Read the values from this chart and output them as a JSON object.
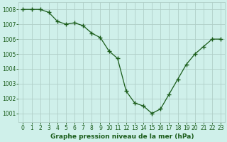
{
  "x": [
    0,
    1,
    2,
    3,
    4,
    5,
    6,
    7,
    8,
    9,
    10,
    11,
    12,
    13,
    14,
    15,
    16,
    17,
    18,
    19,
    20,
    21,
    22,
    23
  ],
  "y": [
    1008.0,
    1008.0,
    1008.0,
    1007.8,
    1007.2,
    1007.0,
    1007.1,
    1006.9,
    1006.4,
    1006.1,
    1005.2,
    1004.7,
    1002.5,
    1001.7,
    1001.5,
    1001.0,
    1001.3,
    1002.3,
    1003.3,
    1004.3,
    1005.0,
    1005.5,
    1006.0,
    1006.0
  ],
  "line_color": "#1a5c1a",
  "marker": "+",
  "marker_size": 4,
  "marker_color": "#1a5c1a",
  "bg_color": "#cff0ea",
  "grid_color": "#b0cfc8",
  "ylabel_ticks": [
    1001,
    1002,
    1003,
    1004,
    1005,
    1006,
    1007,
    1008
  ],
  "xlabel": "Graphe pression niveau de la mer (hPa)",
  "xlabel_color": "#1a5c1a",
  "ylim": [
    1000.4,
    1008.5
  ],
  "xlim": [
    -0.5,
    23.5
  ],
  "tick_fontsize": 5.5,
  "xlabel_fontsize": 6.5
}
